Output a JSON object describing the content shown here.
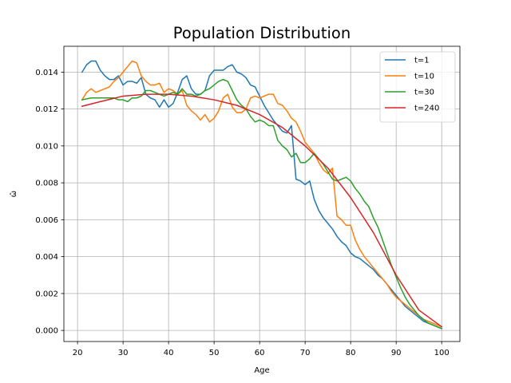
{
  "chart_data": {
    "type": "line",
    "title": "Population Distribution",
    "xlabel": "Age",
    "ylabel": "ω̂",
    "xlim": [
      17,
      104
    ],
    "ylim": [
      -0.0006,
      0.0154
    ],
    "xticks": [
      20,
      30,
      40,
      50,
      60,
      70,
      80,
      90,
      100
    ],
    "xtick_labels": [
      "20",
      "30",
      "40",
      "50",
      "60",
      "70",
      "80",
      "90",
      "100"
    ],
    "yticks": [
      0.0,
      0.002,
      0.004,
      0.006,
      0.008,
      0.01,
      0.012,
      0.014
    ],
    "ytick_labels": [
      "0.000",
      "0.002",
      "0.004",
      "0.006",
      "0.008",
      "0.010",
      "0.012",
      "0.014"
    ],
    "grid": true,
    "legend_position": "top-right",
    "series": [
      {
        "name": "t=1",
        "color": "#1f77b4",
        "x": [
          21,
          22,
          23,
          24,
          25,
          26,
          27,
          28,
          29,
          30,
          31,
          32,
          33,
          34,
          35,
          36,
          37,
          38,
          39,
          40,
          41,
          42,
          43,
          44,
          45,
          46,
          47,
          48,
          49,
          50,
          51,
          52,
          53,
          54,
          55,
          56,
          57,
          58,
          59,
          60,
          61,
          62,
          63,
          64,
          65,
          66,
          67,
          68,
          69,
          70,
          71,
          72,
          73,
          74,
          75,
          76,
          77,
          78,
          79,
          80,
          81,
          82,
          83,
          84,
          85,
          86,
          87,
          88,
          89,
          90,
          91,
          92,
          93,
          94,
          95,
          96,
          97,
          98,
          99,
          100
        ],
        "y": [
          0.014,
          0.0144,
          0.0146,
          0.0146,
          0.0141,
          0.0138,
          0.0136,
          0.0136,
          0.0138,
          0.0133,
          0.0135,
          0.0135,
          0.0134,
          0.0137,
          0.0128,
          0.0126,
          0.0125,
          0.0121,
          0.0125,
          0.0121,
          0.0123,
          0.0129,
          0.0136,
          0.0138,
          0.0131,
          0.0128,
          0.0128,
          0.013,
          0.0138,
          0.0141,
          0.0141,
          0.0141,
          0.0143,
          0.0144,
          0.014,
          0.0139,
          0.0137,
          0.0133,
          0.0132,
          0.0127,
          0.0122,
          0.0118,
          0.0114,
          0.0111,
          0.0108,
          0.0107,
          0.0111,
          0.0082,
          0.0081,
          0.0079,
          0.0081,
          0.0071,
          0.0065,
          0.0061,
          0.0058,
          0.0055,
          0.0051,
          0.0048,
          0.0046,
          0.0042,
          0.004,
          0.0039,
          0.0037,
          0.0035,
          0.0033,
          0.003,
          0.0028,
          0.0025,
          0.0022,
          0.0019,
          0.0016,
          0.0013,
          0.0011,
          0.0009,
          0.0007,
          0.0005,
          0.0004,
          0.0003,
          0.0002,
          0.0001
        ]
      },
      {
        "name": "t=10",
        "color": "#ff7f0e",
        "x": [
          21,
          22,
          23,
          24,
          25,
          26,
          27,
          28,
          29,
          30,
          31,
          32,
          33,
          34,
          35,
          36,
          37,
          38,
          39,
          40,
          41,
          42,
          43,
          44,
          45,
          46,
          47,
          48,
          49,
          50,
          51,
          52,
          53,
          54,
          55,
          56,
          57,
          58,
          59,
          60,
          61,
          62,
          63,
          64,
          65,
          66,
          67,
          68,
          69,
          70,
          71,
          72,
          73,
          74,
          75,
          76,
          77,
          78,
          79,
          80,
          81,
          82,
          83,
          84,
          85,
          86,
          87,
          88,
          89,
          90,
          91,
          92,
          93,
          94,
          95,
          96,
          97,
          98,
          99,
          100
        ],
        "y": [
          0.0125,
          0.0129,
          0.0131,
          0.0129,
          0.013,
          0.0131,
          0.0132,
          0.0135,
          0.0137,
          0.014,
          0.0143,
          0.0146,
          0.0145,
          0.0138,
          0.0135,
          0.0133,
          0.0133,
          0.0134,
          0.0129,
          0.0131,
          0.013,
          0.0128,
          0.013,
          0.0122,
          0.0119,
          0.0117,
          0.0114,
          0.0117,
          0.0113,
          0.0115,
          0.0119,
          0.0126,
          0.0128,
          0.0121,
          0.0118,
          0.0118,
          0.012,
          0.0126,
          0.0127,
          0.0126,
          0.0127,
          0.0128,
          0.0128,
          0.0123,
          0.0122,
          0.0119,
          0.0115,
          0.0113,
          0.0108,
          0.0102,
          0.0099,
          0.0096,
          0.0091,
          0.0087,
          0.0085,
          0.0088,
          0.0062,
          0.006,
          0.0057,
          0.0057,
          0.0049,
          0.0044,
          0.004,
          0.0037,
          0.0034,
          0.0031,
          0.0028,
          0.0025,
          0.0021,
          0.0018,
          0.0016,
          0.0014,
          0.0012,
          0.001,
          0.0008,
          0.0006,
          0.0005,
          0.0004,
          0.0003,
          0.0002
        ]
      },
      {
        "name": "t=30",
        "color": "#2ca02c",
        "x": [
          21,
          22,
          23,
          24,
          25,
          26,
          27,
          28,
          29,
          30,
          31,
          32,
          33,
          34,
          35,
          36,
          37,
          38,
          39,
          40,
          41,
          42,
          43,
          44,
          45,
          46,
          47,
          48,
          49,
          50,
          51,
          52,
          53,
          54,
          55,
          56,
          57,
          58,
          59,
          60,
          61,
          62,
          63,
          64,
          65,
          66,
          67,
          68,
          69,
          70,
          71,
          72,
          73,
          74,
          75,
          76,
          77,
          78,
          79,
          80,
          81,
          82,
          83,
          84,
          85,
          86,
          87,
          88,
          89,
          90,
          91,
          92,
          93,
          94,
          95,
          96,
          97,
          98,
          99,
          100
        ],
        "y": [
          0.0125,
          0.01255,
          0.0126,
          0.0126,
          0.0126,
          0.0126,
          0.0126,
          0.0126,
          0.0125,
          0.0125,
          0.0124,
          0.0126,
          0.0126,
          0.0127,
          0.013,
          0.013,
          0.0129,
          0.0128,
          0.0127,
          0.0128,
          0.0129,
          0.0128,
          0.0131,
          0.0128,
          0.0128,
          0.0127,
          0.0128,
          0.013,
          0.0131,
          0.0133,
          0.0135,
          0.0136,
          0.0135,
          0.013,
          0.0125,
          0.0122,
          0.012,
          0.0116,
          0.0113,
          0.0114,
          0.0113,
          0.0111,
          0.0111,
          0.0103,
          0.01,
          0.0098,
          0.0094,
          0.0096,
          0.0091,
          0.0091,
          0.0093,
          0.0096,
          0.0093,
          0.009,
          0.0086,
          0.0082,
          0.0081,
          0.0082,
          0.0083,
          0.0081,
          0.0077,
          0.0074,
          0.007,
          0.0067,
          0.0061,
          0.0056,
          0.0049,
          0.0042,
          0.0035,
          0.0029,
          0.0023,
          0.0018,
          0.0014,
          0.0011,
          0.0008,
          0.0006,
          0.0004,
          0.0003,
          0.0002,
          0.0001
        ]
      },
      {
        "name": "t=240",
        "color": "#d62728",
        "x": [
          21,
          25,
          30,
          35,
          40,
          45,
          50,
          55,
          60,
          65,
          70,
          75,
          80,
          85,
          90,
          95,
          100
        ],
        "y": [
          0.01215,
          0.0124,
          0.0127,
          0.0128,
          0.0128,
          0.0127,
          0.0125,
          0.0122,
          0.0117,
          0.011,
          0.01,
          0.0088,
          0.0072,
          0.0053,
          0.003,
          0.0011,
          0.0002
        ]
      }
    ]
  }
}
